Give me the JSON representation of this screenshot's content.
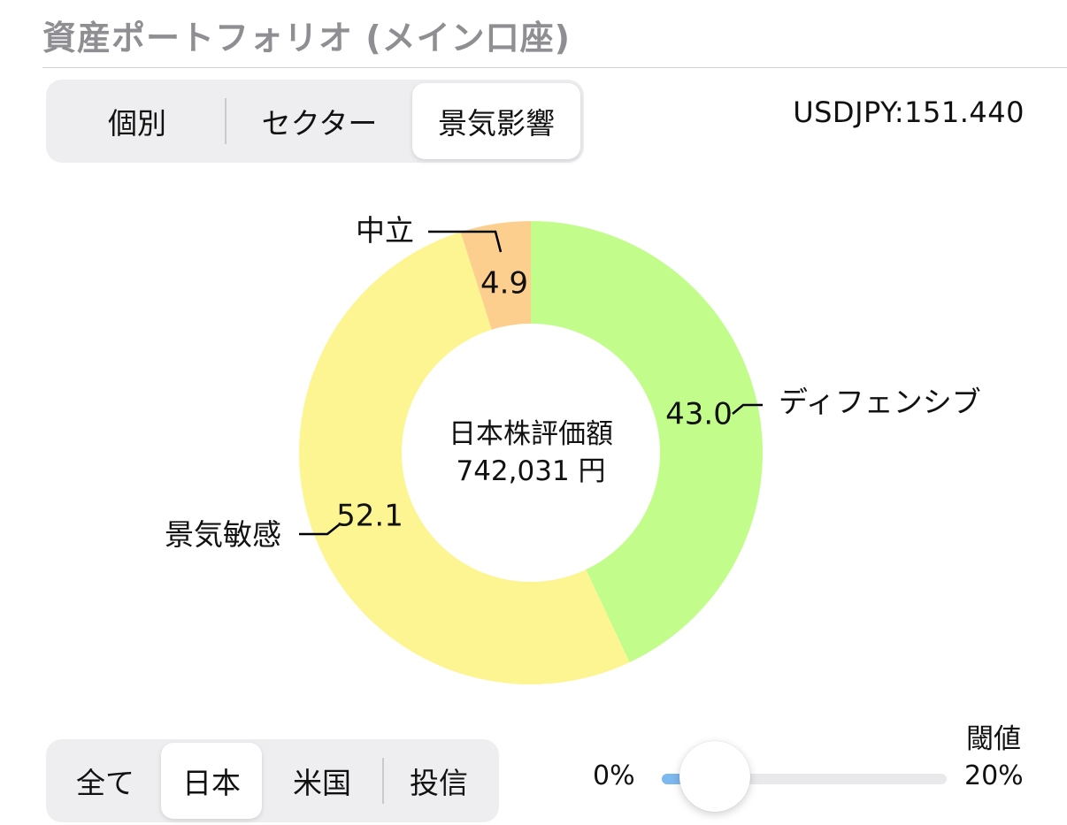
{
  "header": {
    "title": "資産ポートフォリオ (メイン口座)"
  },
  "view_tabs": [
    {
      "label": "個別",
      "active": false
    },
    {
      "label": "セクター",
      "active": false
    },
    {
      "label": "景気影響",
      "active": true
    }
  ],
  "fx_rate": "USDJPY:151.440",
  "center": {
    "line1": "日本株評価額",
    "line2": "742,031 円"
  },
  "market_tabs": [
    {
      "label": "全て",
      "active": false
    },
    {
      "label": "日本",
      "active": true
    },
    {
      "label": "米国",
      "active": false
    },
    {
      "label": "投信",
      "active": false
    }
  ],
  "threshold": {
    "label": "閾値",
    "min_label": "0%",
    "max_label": "20%",
    "value_fraction": 0.0
  },
  "chart_data": {
    "type": "pie",
    "donut": true,
    "slices": [
      {
        "label": "ディフェンシブ",
        "value": 43.0,
        "value_label": "43.0",
        "color": "#c2fd8c"
      },
      {
        "label": "景気敏感",
        "value": 52.1,
        "value_label": "52.1",
        "color": "#fdf591"
      },
      {
        "label": "中立",
        "value": 4.9,
        "value_label": "4.9",
        "color": "#fdcf8f"
      }
    ]
  }
}
